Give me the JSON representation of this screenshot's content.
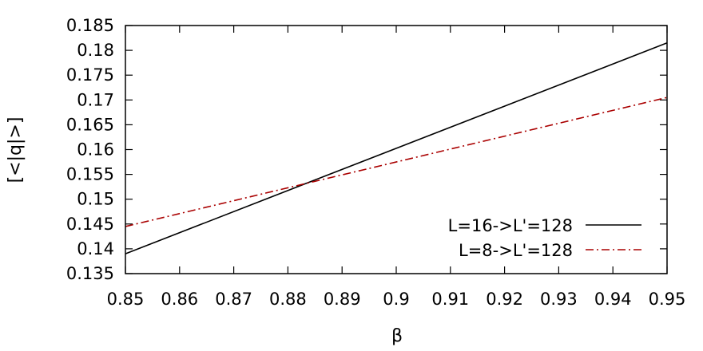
{
  "chart_data": {
    "type": "line",
    "xlabel": "β",
    "ylabel": "[<|q|>]",
    "xlim": [
      0.85,
      0.95
    ],
    "ylim": [
      0.135,
      0.185
    ],
    "x_ticks": [
      "0.85",
      "0.86",
      "0.87",
      "0.88",
      "0.89",
      "0.9",
      "0.91",
      "0.92",
      "0.93",
      "0.94",
      "0.95"
    ],
    "y_ticks": [
      "0.135",
      "0.14",
      "0.145",
      "0.15",
      "0.155",
      "0.16",
      "0.165",
      "0.17",
      "0.175",
      "0.18",
      "0.185"
    ],
    "grid": false,
    "legend_position": "bottom-right",
    "series": [
      {
        "name": "L=16->L'=128",
        "color": "#000000",
        "style": "solid",
        "x": [
          0.85,
          0.95
        ],
        "y": [
          0.139,
          0.1815
        ]
      },
      {
        "name": "L=8->L'=128",
        "color": "#aa0000",
        "style": "dash-dot",
        "x": [
          0.85,
          0.95
        ],
        "y": [
          0.1445,
          0.1705
        ]
      }
    ]
  }
}
